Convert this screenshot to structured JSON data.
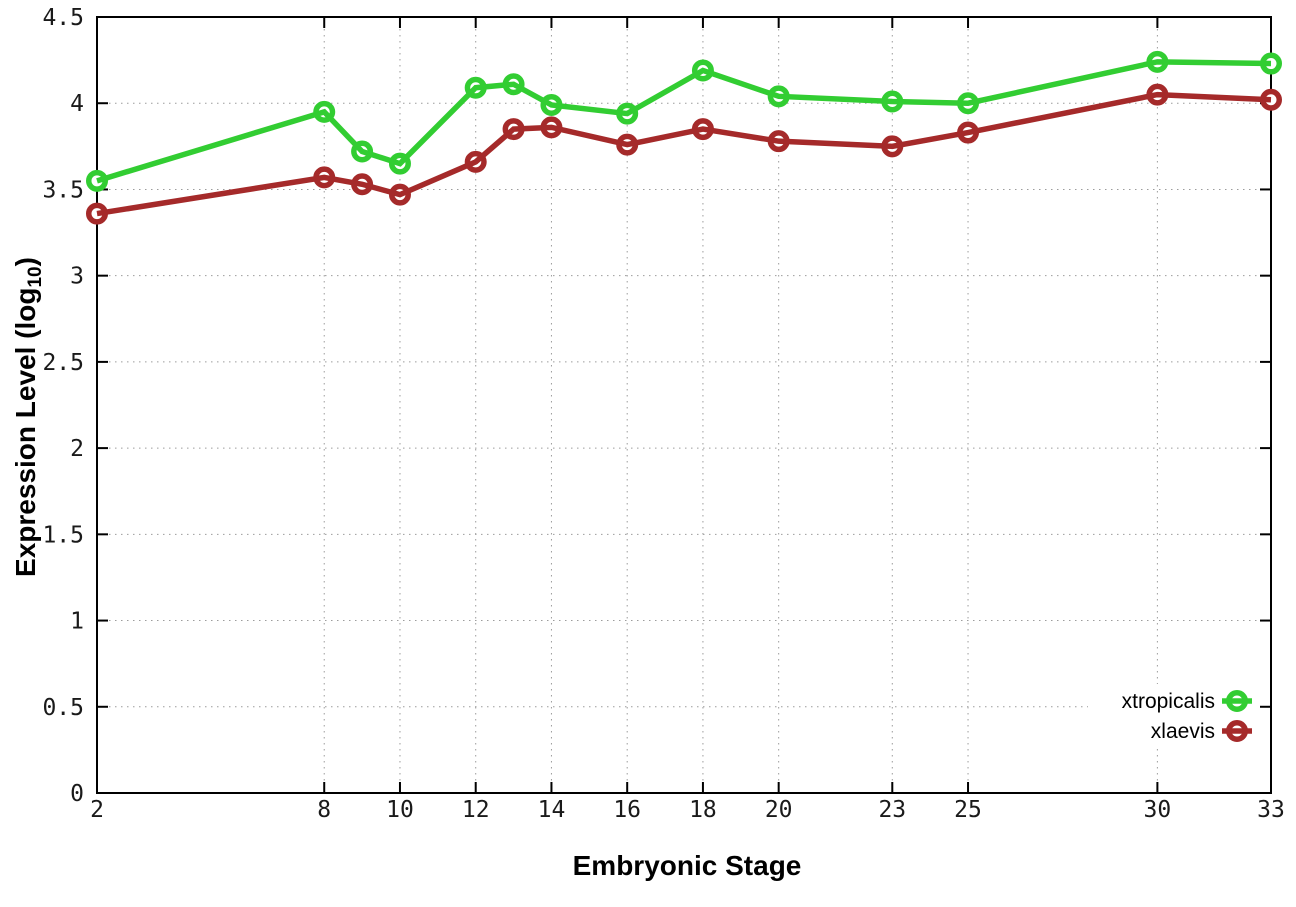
{
  "chart_data": {
    "type": "line",
    "title": "",
    "xlabel": "Embryonic Stage",
    "ylabel": {
      "text": "Expression Level (log",
      "subscript": "10",
      "suffix": ")"
    },
    "x": [
      2,
      8,
      9,
      10,
      12,
      13,
      14,
      16,
      18,
      20,
      23,
      25,
      30,
      33
    ],
    "xlim": [
      2,
      33
    ],
    "ylim": [
      0,
      4.5
    ],
    "x_ticks": [
      2,
      8,
      10,
      12,
      14,
      16,
      18,
      20,
      23,
      25,
      30,
      33
    ],
    "x_tick_labels": [
      "2",
      "8",
      "10",
      "12",
      "14",
      "16",
      "18",
      "20",
      "23",
      "25",
      "30",
      "33"
    ],
    "y_ticks": [
      0,
      0.5,
      1,
      1.5,
      2,
      2.5,
      3,
      3.5,
      4,
      4.5
    ],
    "y_tick_labels": [
      "0",
      "0.5",
      "1",
      "1.5",
      "2",
      "2.5",
      "3",
      "3.5",
      "4",
      "4.5"
    ],
    "grid": true,
    "legend_position": "inside-bottom-right",
    "series": [
      {
        "name": "xtropicalis",
        "color": "#32cd32",
        "marker": "open-circle",
        "values": [
          3.55,
          3.95,
          3.72,
          3.65,
          4.09,
          4.11,
          3.99,
          3.94,
          4.19,
          4.04,
          4.01,
          4.0,
          4.24,
          4.23
        ]
      },
      {
        "name": "xlaevis",
        "color": "#a52a2a",
        "marker": "open-circle",
        "values": [
          3.36,
          3.57,
          3.53,
          3.47,
          3.66,
          3.85,
          3.86,
          3.76,
          3.85,
          3.78,
          3.75,
          3.83,
          4.05,
          4.02
        ]
      }
    ],
    "colors": {
      "background": "#ffffff",
      "frame": "#000000",
      "grid": "#9c9c9c"
    }
  }
}
